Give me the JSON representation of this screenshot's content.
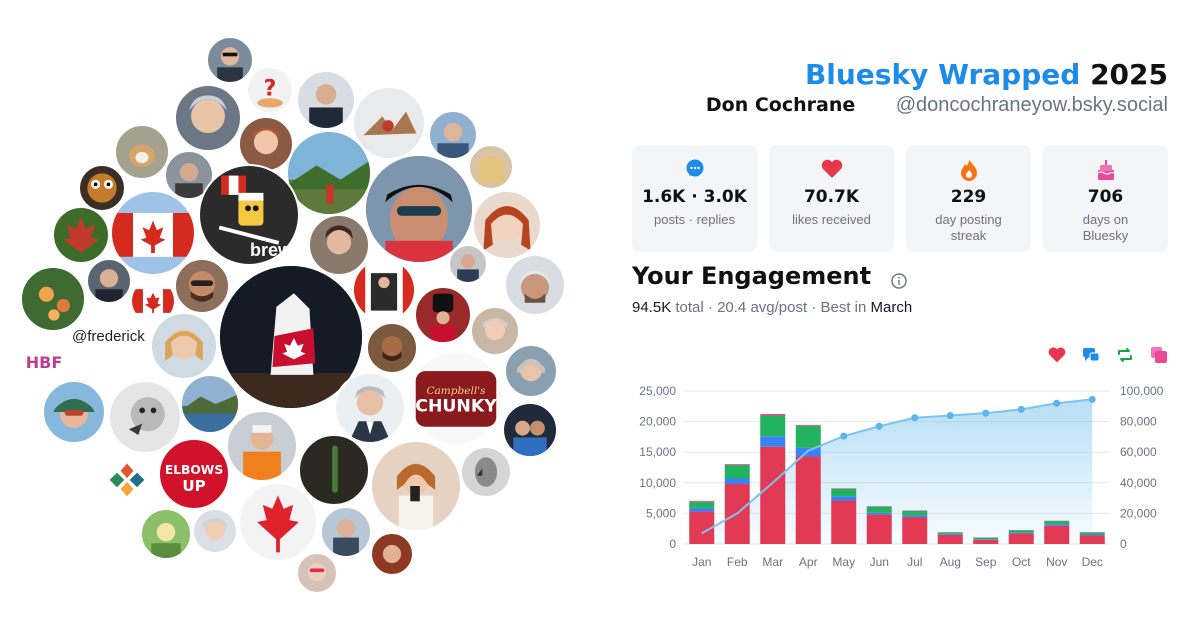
{
  "header": {
    "brand": "Bluesky Wrapped",
    "year": "2025",
    "display_name": "Don Cochrane",
    "handle": "@doncochraneyow.bsky.social"
  },
  "bubbles": {
    "caption": "@frederick",
    "overlay_text": "brewski"
  },
  "stats": [
    {
      "icon": "speech-bubble-icon",
      "value": "1.6K · 3.0K",
      "label": "posts · replies",
      "color": "#1c8ce8"
    },
    {
      "icon": "heart-icon",
      "value": "70.7K",
      "label": "likes received",
      "color": "#e8364f"
    },
    {
      "icon": "flame-icon",
      "value": "229",
      "label": "day posting streak",
      "color": "#f97316"
    },
    {
      "icon": "cake-icon",
      "value": "706",
      "label": "days on Bluesky",
      "color": "#ec4899"
    }
  ],
  "engagement": {
    "title": "Your Engagement",
    "total": "94.5K",
    "total_label": "total",
    "avg": "20.4 avg/post",
    "best_prefix": "Best in",
    "best_month": "March",
    "sep": "·"
  },
  "legend": [
    {
      "name": "heart-icon",
      "color": "#e8364f"
    },
    {
      "name": "reply-icon",
      "color": "#1c8ce8"
    },
    {
      "name": "repost-icon",
      "color": "#16a34a"
    },
    {
      "name": "quote-icon",
      "color": "#ec4899"
    }
  ],
  "chart_data": {
    "type": "bar",
    "categories": [
      "Jan",
      "Feb",
      "Mar",
      "Apr",
      "May",
      "Jun",
      "Jul",
      "Aug",
      "Sep",
      "Oct",
      "Nov",
      "Dec"
    ],
    "series": [
      {
        "values": [
          5300,
          9800,
          15900,
          14300,
          7100,
          4800,
          4400,
          1500,
          700,
          1700,
          3000,
          1400
        ],
        "color": "#e23a55"
      },
      {
        "values": [
          600,
          900,
          1700,
          1400,
          700,
          300,
          300,
          150,
          100,
          150,
          250,
          150
        ],
        "color": "#3b82f6"
      },
      {
        "values": [
          1000,
          2200,
          3400,
          3600,
          1200,
          1000,
          700,
          250,
          250,
          400,
          500,
          350
        ],
        "color": "#22b35e"
      },
      {
        "values": [
          150,
          150,
          250,
          150,
          100,
          80,
          80,
          30,
          30,
          40,
          50,
          30
        ],
        "color": "#ec4899"
      }
    ],
    "cumulative": [
      7050,
      20000,
      40000,
      61000,
      70500,
      77000,
      82500,
      84000,
      85500,
      88000,
      92000,
      94500
    ],
    "ylim": [
      0,
      25000
    ],
    "y2lim": [
      0,
      100000
    ],
    "yticks": [
      "0",
      "5,000",
      "10,000",
      "15,000",
      "20,000",
      "25,000"
    ],
    "y2ticks": [
      "0",
      "20,000",
      "40,000",
      "60,000",
      "80,000",
      "100,000"
    ],
    "grid": true
  }
}
